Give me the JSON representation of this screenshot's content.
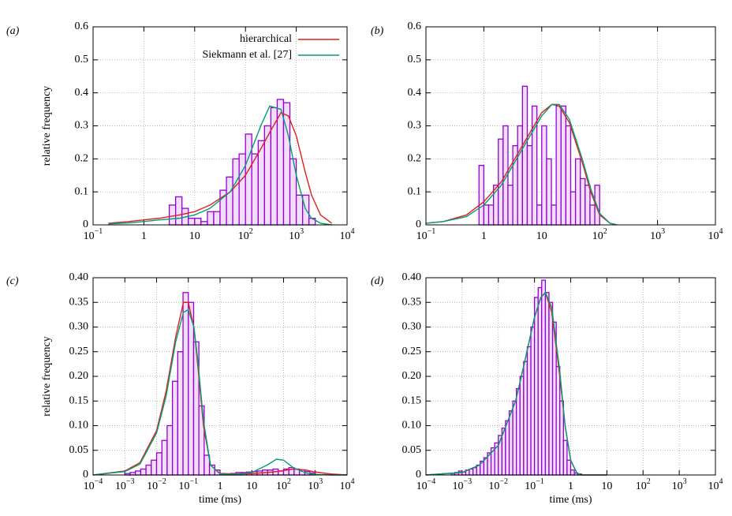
{
  "chart_data": [
    {
      "type": "histogram",
      "panel_label": "(a)",
      "ylabel": "relative frequency",
      "log_x": true,
      "xlim": [
        0.1,
        10000
      ],
      "xticks": [
        {
          "value": 0.1,
          "label": "10",
          "exponent": "−1"
        },
        1,
        10,
        {
          "value": 100,
          "label": "10",
          "exponent": "2"
        },
        {
          "value": 1000,
          "label": "10",
          "exponent": "3"
        },
        {
          "value": 10000,
          "label": "10",
          "exponent": "4"
        }
      ],
      "ylim": [
        0,
        0.6
      ],
      "yticks": [
        0,
        0.1,
        0.2,
        0.3,
        0.4,
        0.5,
        0.6
      ],
      "grid": true,
      "legend": "upper right",
      "bar_color": "#9400d3",
      "bins": [
        3.16,
        4.22,
        5.62,
        7.5,
        10,
        13.3,
        17.8,
        23.7,
        31.6,
        42.2,
        56.2,
        75,
        100,
        133,
        178,
        237,
        316,
        422,
        562,
        750,
        1000,
        1334,
        1778,
        2371
      ],
      "values": [
        0.06,
        0.085,
        0.05,
        0.02,
        0.02,
        0.01,
        0.04,
        0.04,
        0.105,
        0.145,
        0.2,
        0.215,
        0.275,
        0.215,
        0.255,
        0.3,
        0.355,
        0.38,
        0.37,
        0.2,
        0.09,
        0.09,
        0.02
      ],
      "series": [
        {
          "name": "hierarchical",
          "color": "#e0201b",
          "x": [
            0.2,
            0.5,
            1,
            2,
            5,
            10,
            20,
            50,
            100,
            200,
            300,
            500,
            700,
            1000,
            1500,
            2000,
            3000,
            5000
          ],
          "values": [
            0.005,
            0.01,
            0.015,
            0.02,
            0.03,
            0.04,
            0.06,
            0.1,
            0.15,
            0.23,
            0.28,
            0.34,
            0.33,
            0.27,
            0.16,
            0.09,
            0.03,
            0.005
          ]
        },
        {
          "name": "Siekmann et al. [27]",
          "color": "#009e73",
          "x": [
            0.2,
            0.5,
            1,
            2,
            5,
            10,
            20,
            50,
            100,
            200,
            300,
            500,
            700,
            1000,
            1500,
            2000,
            3000,
            5000
          ],
          "values": [
            0.003,
            0.006,
            0.01,
            0.015,
            0.02,
            0.03,
            0.05,
            0.1,
            0.18,
            0.3,
            0.36,
            0.35,
            0.27,
            0.15,
            0.05,
            0.02,
            0.005,
            0
          ]
        }
      ]
    },
    {
      "type": "histogram",
      "panel_label": "(b)",
      "log_x": true,
      "xlim": [
        0.1,
        10000
      ],
      "xticks": [
        {
          "value": 0.1,
          "label": "10",
          "exponent": "−1"
        },
        1,
        10,
        {
          "value": 100,
          "label": "10",
          "exponent": "2"
        },
        {
          "value": 1000,
          "label": "10",
          "exponent": "3"
        },
        {
          "value": 10000,
          "label": "10",
          "exponent": "4"
        }
      ],
      "ylim": [
        0,
        0.6
      ],
      "yticks": [
        0,
        0.1,
        0.2,
        0.3,
        0.4,
        0.5,
        0.6
      ],
      "grid": true,
      "bar_color": "#9400d3",
      "bins": [
        0.825,
        1,
        1.212,
        1.468,
        1.778,
        2.154,
        2.61,
        3.162,
        3.831,
        4.642,
        5.623,
        6.813,
        8.254,
        10,
        12.12,
        14.68,
        17.78,
        21.54,
        26.1,
        31.62,
        38.31,
        46.42,
        56.23,
        68.13,
        82.54,
        100
      ],
      "values": [
        0.18,
        0.06,
        0.06,
        0.12,
        0.26,
        0.3,
        0.12,
        0.24,
        0.3,
        0.42,
        0.24,
        0.36,
        0.06,
        0.3,
        0.2,
        0.06,
        0.36,
        0.36,
        0.3,
        0.1,
        0.2,
        0.14,
        0.12,
        0.06,
        0.12
      ],
      "series": [
        {
          "color": "#e0201b",
          "x": [
            0.1,
            0.2,
            0.5,
            1,
            2,
            5,
            10,
            15,
            20,
            30,
            50,
            70,
            100,
            150,
            200
          ],
          "values": [
            0.005,
            0.01,
            0.03,
            0.07,
            0.13,
            0.25,
            0.34,
            0.365,
            0.36,
            0.31,
            0.19,
            0.1,
            0.03,
            0.005,
            0
          ]
        },
        {
          "color": "#009e73",
          "x": [
            0.1,
            0.2,
            0.5,
            1,
            2,
            5,
            10,
            15,
            20,
            30,
            50,
            70,
            100,
            150,
            200
          ],
          "values": [
            0.005,
            0.01,
            0.025,
            0.06,
            0.12,
            0.24,
            0.33,
            0.365,
            0.365,
            0.32,
            0.2,
            0.11,
            0.035,
            0.005,
            0
          ]
        }
      ]
    },
    {
      "type": "histogram",
      "panel_label": "(c)",
      "ylabel": "relative frequency",
      "xlabel": "time (ms)",
      "log_x": true,
      "xlim": [
        0.0001,
        10000
      ],
      "xticks": [
        {
          "value": 0.0001,
          "label": "10",
          "exponent": "−4"
        },
        {
          "value": 0.001,
          "label": "10",
          "exponent": "−3"
        },
        {
          "value": 0.01,
          "label": "10",
          "exponent": "−2"
        },
        {
          "value": 0.1,
          "label": "10",
          "exponent": "−1"
        },
        1,
        10,
        {
          "value": 100,
          "label": "10",
          "exponent": "2"
        },
        {
          "value": 1000,
          "label": "10",
          "exponent": "3"
        },
        {
          "value": 10000,
          "label": "10",
          "exponent": "4"
        }
      ],
      "ylim": [
        0,
        0.4
      ],
      "yticks": [
        0,
        0.05,
        {
          "value": 0.1,
          "label": "0.10"
        },
        0.15,
        {
          "value": 0.2,
          "label": "0.20"
        },
        0.25,
        {
          "value": 0.3,
          "label": "0.30"
        },
        0.35,
        {
          "value": 0.4,
          "label": "0.40"
        }
      ],
      "grid": true,
      "bar_color": "#9400d3",
      "bins": [
        0.001,
        0.00147,
        0.00215,
        0.00316,
        0.00464,
        0.00681,
        0.01,
        0.0147,
        0.0215,
        0.0316,
        0.0464,
        0.0681,
        0.1,
        0.147,
        0.215,
        0.316,
        0.464,
        0.681,
        1,
        1.47,
        2.15,
        3.16,
        4.64,
        6.81,
        10,
        14.7,
        21.5,
        31.6,
        46.4,
        68.1,
        100,
        147,
        215,
        316,
        464,
        681,
        1000
      ],
      "values": [
        0.003,
        0.005,
        0.008,
        0.012,
        0.02,
        0.03,
        0.045,
        0.07,
        0.1,
        0.19,
        0.25,
        0.37,
        0.35,
        0.27,
        0.14,
        0.04,
        0.02,
        0.01,
        0.003,
        0.002,
        0.003,
        0.005,
        0.005,
        0.006,
        0.007,
        0.008,
        0.01,
        0.01,
        0.012,
        0.008,
        0.012,
        0.015,
        0.012,
        0.01,
        0.007,
        0.004
      ],
      "series": [
        {
          "color": "#e0201b",
          "x": [
            0.0001,
            0.001,
            0.003,
            0.01,
            0.02,
            0.04,
            0.07,
            0.1,
            0.15,
            0.2,
            0.3,
            0.5,
            1,
            3,
            10,
            30,
            60,
            100,
            200,
            500,
            1000,
            3000,
            10000
          ],
          "values": [
            0,
            0.008,
            0.025,
            0.09,
            0.17,
            0.28,
            0.35,
            0.35,
            0.3,
            0.22,
            0.1,
            0.02,
            0.003,
            0.002,
            0.003,
            0.005,
            0.007,
            0.009,
            0.012,
            0.01,
            0.006,
            0.002,
            0
          ]
        },
        {
          "color": "#009e73",
          "x": [
            0.0001,
            0.001,
            0.003,
            0.01,
            0.02,
            0.04,
            0.07,
            0.1,
            0.15,
            0.2,
            0.3,
            0.5,
            1,
            3,
            10,
            30,
            60,
            100,
            200,
            500,
            1000,
            3000,
            10000
          ],
          "values": [
            0,
            0.007,
            0.022,
            0.085,
            0.16,
            0.27,
            0.33,
            0.335,
            0.3,
            0.23,
            0.11,
            0.02,
            0.002,
            0.001,
            0.005,
            0.02,
            0.032,
            0.03,
            0.015,
            0.004,
            0.001,
            0,
            0
          ]
        }
      ]
    },
    {
      "type": "histogram",
      "panel_label": "(d)",
      "xlabel": "time (ms)",
      "log_x": true,
      "xlim": [
        0.0001,
        10000
      ],
      "xticks": [
        {
          "value": 0.0001,
          "label": "10",
          "exponent": "−4"
        },
        {
          "value": 0.001,
          "label": "10",
          "exponent": "−3"
        },
        {
          "value": 0.01,
          "label": "10",
          "exponent": "−2"
        },
        {
          "value": 0.1,
          "label": "10",
          "exponent": "−1"
        },
        1,
        10,
        {
          "value": 100,
          "label": "10",
          "exponent": "2"
        },
        {
          "value": 1000,
          "label": "10",
          "exponent": "3"
        },
        {
          "value": 10000,
          "label": "10",
          "exponent": "4"
        }
      ],
      "ylim": [
        0,
        0.4
      ],
      "yticks": [
        0,
        0.05,
        {
          "value": 0.1,
          "label": "0.10"
        },
        0.15,
        {
          "value": 0.2,
          "label": "0.20"
        },
        0.25,
        {
          "value": 0.3,
          "label": "0.30"
        },
        0.35,
        {
          "value": 0.4,
          "label": "0.40"
        }
      ],
      "grid": true,
      "bar_color": "#9400d3",
      "bins": [
        0.000501,
        0.000631,
        0.000794,
        0.001,
        0.00126,
        0.00158,
        0.002,
        0.00251,
        0.00316,
        0.00398,
        0.00501,
        0.00631,
        0.00794,
        0.01,
        0.0126,
        0.0158,
        0.02,
        0.0251,
        0.0316,
        0.0398,
        0.0501,
        0.0631,
        0.0794,
        0.1,
        0.126,
        0.158,
        0.2,
        0.251,
        0.316,
        0.398,
        0.501,
        0.631,
        0.794,
        1,
        1.26,
        1.58,
        2
      ],
      "values": [
        0.003,
        0.005,
        0.008,
        0.006,
        0.01,
        0.012,
        0.015,
        0.02,
        0.028,
        0.035,
        0.045,
        0.055,
        0.065,
        0.08,
        0.095,
        0.11,
        0.13,
        0.15,
        0.175,
        0.2,
        0.23,
        0.26,
        0.3,
        0.36,
        0.38,
        0.395,
        0.37,
        0.35,
        0.31,
        0.22,
        0.15,
        0.07,
        0.03,
        0.01,
        0.004,
        0.002
      ],
      "series": [
        {
          "color": "#e0201b",
          "x": [
            0.0001,
            0.001,
            0.003,
            0.01,
            0.03,
            0.05,
            0.1,
            0.15,
            0.2,
            0.3,
            0.5,
            0.7,
            1,
            1.5,
            2,
            10
          ],
          "values": [
            0,
            0.005,
            0.02,
            0.06,
            0.15,
            0.22,
            0.32,
            0.36,
            0.37,
            0.33,
            0.2,
            0.1,
            0.03,
            0.003,
            0,
            0
          ]
        },
        {
          "color": "#009e73",
          "x": [
            0.0001,
            0.001,
            0.003,
            0.01,
            0.03,
            0.05,
            0.1,
            0.15,
            0.2,
            0.3,
            0.5,
            0.7,
            1,
            1.5,
            2,
            10
          ],
          "values": [
            0,
            0.005,
            0.02,
            0.06,
            0.15,
            0.22,
            0.32,
            0.36,
            0.37,
            0.34,
            0.21,
            0.1,
            0.03,
            0.003,
            0,
            0
          ]
        }
      ]
    }
  ]
}
